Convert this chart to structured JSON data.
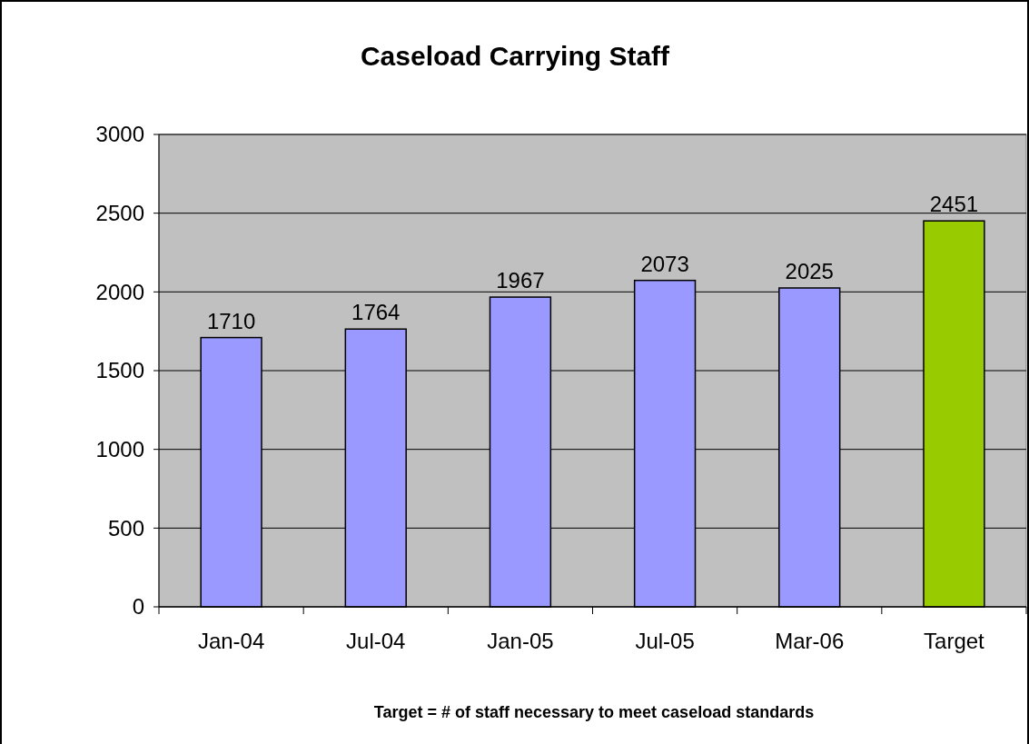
{
  "chart_data": {
    "type": "bar",
    "title": "Caseload Carrying Staff",
    "categories": [
      "Jan-04",
      "Jul-04",
      "Jan-05",
      "Jul-05",
      "Mar-06",
      "Target"
    ],
    "values": [
      1710,
      1764,
      1967,
      2073,
      2025,
      2451
    ],
    "colors": [
      "#9999ff",
      "#9999ff",
      "#9999ff",
      "#9999ff",
      "#9999ff",
      "#99cc00"
    ],
    "ylim": [
      0,
      3000
    ],
    "yticks": [
      0,
      500,
      1000,
      1500,
      2000,
      2500,
      3000
    ],
    "grid": "y",
    "data_labels": true,
    "annotations": [
      "Target = # of staff necessary to meet caseload standards"
    ]
  }
}
